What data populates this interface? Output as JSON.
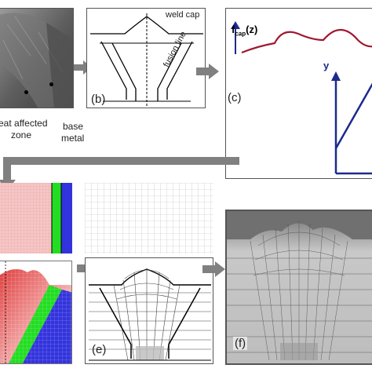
{
  "panels": {
    "a": {
      "annotations": [
        "eat affected",
        "zone",
        "base",
        "metal"
      ]
    },
    "b": {
      "label": "(b)",
      "weld_cap": "weld cap",
      "fusion_line": "fusion line"
    },
    "c": {
      "label": "(c)",
      "fcap_main": "f",
      "fcap_sub": "cap",
      "fcap_arg": "(z)",
      "y_axis": "y"
    },
    "e": {
      "label": "(e)"
    },
    "f": {
      "label": "(f)"
    }
  },
  "colors": {
    "arrow": "#808080",
    "curve": "#a01830",
    "axis": "#1c2a8c",
    "haz_red": "#f2b6b6",
    "green": "#22dd22",
    "blue": "#3333dd"
  }
}
